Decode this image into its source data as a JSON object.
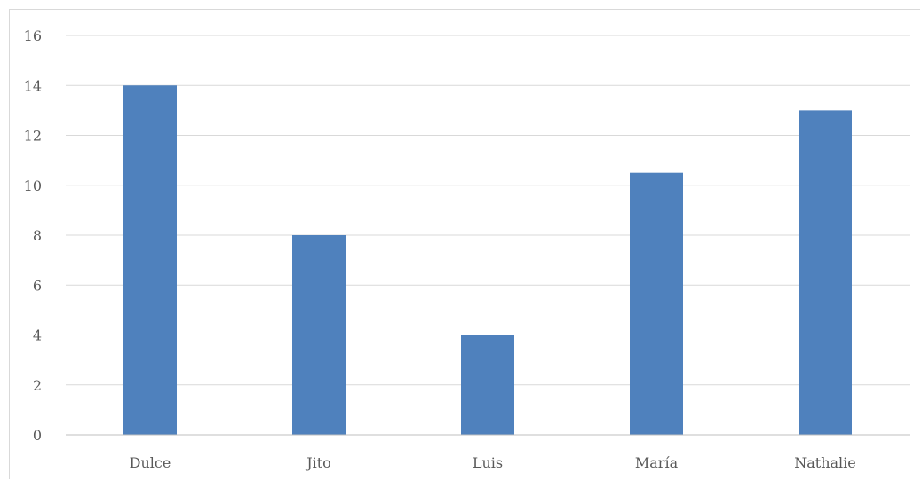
{
  "chart_data": {
    "type": "bar",
    "categories": [
      "Dulce",
      "Jito",
      "Luis",
      "María",
      "Nathalie"
    ],
    "values": [
      14,
      8,
      4,
      10.5,
      13
    ],
    "title": "",
    "xlabel": "",
    "ylabel": "",
    "ylim": [
      0,
      16
    ],
    "yticks": [
      0,
      2,
      4,
      6,
      8,
      10,
      12,
      14,
      16
    ],
    "grid": true,
    "legend": "none",
    "bar_color": "#4f81bd"
  }
}
